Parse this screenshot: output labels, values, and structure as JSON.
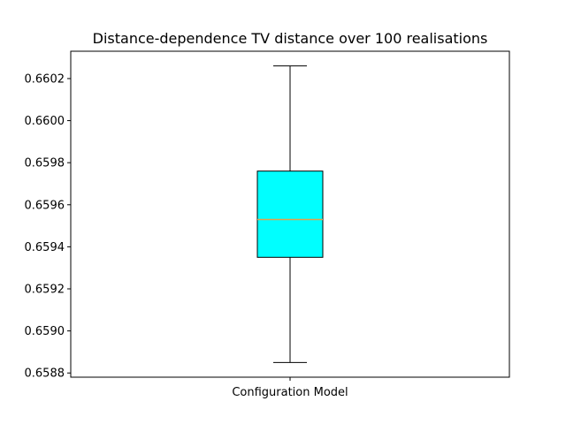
{
  "chart_data": {
    "type": "box",
    "title": "Distance-dependence TV distance over 100 realisations",
    "xlabel": "",
    "ylabel": "",
    "categories": [
      "Configuration Model"
    ],
    "boxes": [
      {
        "name": "Configuration Model",
        "whisker_low": 0.65885,
        "q1": 0.65935,
        "median": 0.65953,
        "q3": 0.65976,
        "whisker_high": 0.66026
      }
    ],
    "ylim": [
      0.65878,
      0.66033
    ],
    "yticks": [
      0.6588,
      0.659,
      0.6592,
      0.6594,
      0.6596,
      0.6598,
      0.66,
      0.6602
    ],
    "ytick_labels": [
      "0.6588",
      "0.6590",
      "0.6592",
      "0.6594",
      "0.6596",
      "0.6598",
      "0.6600",
      "0.6602"
    ],
    "grid": false,
    "colors": {
      "box_fill": "#00ffff",
      "median_line": "#e2a24a",
      "lines": "#000000"
    }
  }
}
